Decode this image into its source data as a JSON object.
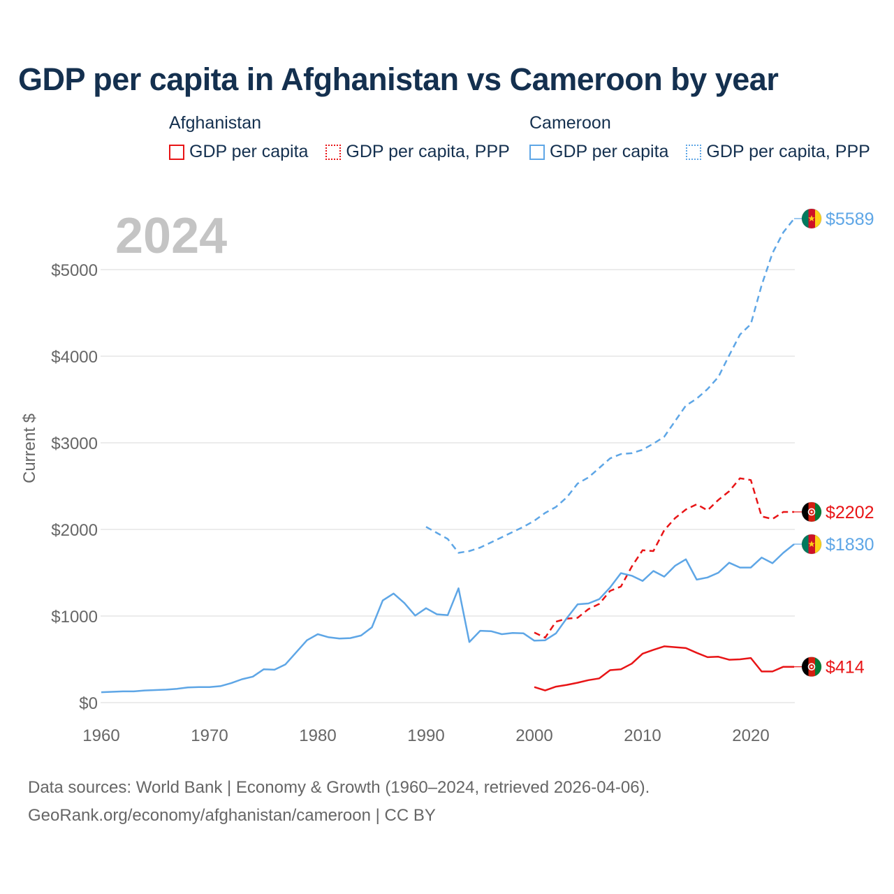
{
  "title": "GDP per capita in Afghanistan vs Cameroon by year",
  "year_watermark": "2024",
  "legend": [
    {
      "country": "Afghanistan",
      "color": "#e81416",
      "items": [
        {
          "label": "GDP per capita",
          "style": "solid"
        },
        {
          "label": "GDP per capita, PPP",
          "style": "dotted"
        }
      ]
    },
    {
      "country": "Cameroon",
      "color": "#5ea6e6",
      "items": [
        {
          "label": "GDP per capita",
          "style": "solid"
        },
        {
          "label": "GDP per capita, PPP",
          "style": "dotted"
        }
      ]
    }
  ],
  "footer": {
    "sources": "Data sources: World Bank | Economy & Growth (1960–2024, retrieved 2026-04-06).",
    "credit": "GeoRank.org/economy/afghanistan/cameroon | CC BY"
  },
  "chart_data": {
    "type": "line",
    "title": "GDP per capita in Afghanistan vs Cameroon by year",
    "xlabel": "",
    "ylabel": "Current $",
    "xlim": [
      1960,
      2024
    ],
    "ylim": [
      0,
      5600
    ],
    "x_ticks": [
      1960,
      1970,
      1980,
      1990,
      2000,
      2010,
      2020
    ],
    "y_ticks": [
      0,
      1000,
      2000,
      3000,
      4000,
      5000
    ],
    "y_tick_labels": [
      "$0",
      "$1000",
      "$2000",
      "$3000",
      "$4000",
      "$5000"
    ],
    "grid": true,
    "series": [
      {
        "name": "Afghanistan GDP per capita",
        "country": "Afghanistan",
        "color": "#e81416",
        "dash": "solid",
        "end_label": "$414",
        "flag": "afghanistan",
        "x": [
          2000,
          2001,
          2002,
          2003,
          2004,
          2005,
          2006,
          2007,
          2008,
          2009,
          2010,
          2011,
          2012,
          2013,
          2014,
          2015,
          2016,
          2017,
          2018,
          2019,
          2020,
          2021,
          2022,
          2023,
          2024
        ],
        "values": [
          180,
          140,
          185,
          205,
          230,
          260,
          280,
          375,
          385,
          450,
          565,
          610,
          650,
          640,
          630,
          575,
          525,
          530,
          495,
          500,
          515,
          360,
          360,
          414,
          414
        ]
      },
      {
        "name": "Afghanistan GDP per capita, PPP",
        "country": "Afghanistan",
        "color": "#e81416",
        "dash": "dashed",
        "end_label": "$2202",
        "flag": "afghanistan",
        "x": [
          2000,
          2001,
          2002,
          2003,
          2004,
          2005,
          2006,
          2007,
          2008,
          2009,
          2010,
          2011,
          2012,
          2013,
          2014,
          2015,
          2016,
          2017,
          2018,
          2019,
          2020,
          2021,
          2022,
          2023,
          2024
        ],
        "values": [
          810,
          750,
          935,
          970,
          980,
          1080,
          1140,
          1290,
          1340,
          1570,
          1760,
          1750,
          1990,
          2130,
          2230,
          2290,
          2220,
          2340,
          2440,
          2590,
          2570,
          2150,
          2120,
          2202,
          2202
        ]
      },
      {
        "name": "Cameroon GDP per capita",
        "country": "Cameroon",
        "color": "#5ea6e6",
        "dash": "solid",
        "end_label": "$1830",
        "flag": "cameroon",
        "x": [
          1960,
          1961,
          1962,
          1963,
          1964,
          1965,
          1966,
          1967,
          1968,
          1969,
          1970,
          1971,
          1972,
          1973,
          1974,
          1975,
          1976,
          1977,
          1978,
          1979,
          1980,
          1981,
          1982,
          1983,
          1984,
          1985,
          1986,
          1987,
          1988,
          1989,
          1990,
          1991,
          1992,
          1993,
          1994,
          1995,
          1996,
          1997,
          1998,
          1999,
          2000,
          2001,
          2002,
          2003,
          2004,
          2005,
          2006,
          2007,
          2008,
          2009,
          2010,
          2011,
          2012,
          2013,
          2014,
          2015,
          2016,
          2017,
          2018,
          2019,
          2020,
          2021,
          2022,
          2023,
          2024
        ],
        "values": [
          120,
          125,
          130,
          130,
          140,
          145,
          150,
          160,
          175,
          180,
          180,
          190,
          225,
          270,
          300,
          385,
          380,
          440,
          580,
          720,
          790,
          755,
          740,
          745,
          775,
          870,
          1180,
          1260,
          1150,
          1005,
          1090,
          1020,
          1010,
          1320,
          700,
          830,
          825,
          790,
          805,
          800,
          715,
          720,
          800,
          975,
          1135,
          1145,
          1195,
          1330,
          1495,
          1465,
          1405,
          1520,
          1455,
          1580,
          1655,
          1420,
          1445,
          1500,
          1615,
          1560,
          1560,
          1675,
          1610,
          1730,
          1830
        ]
      },
      {
        "name": "Cameroon GDP per capita, PPP",
        "country": "Cameroon",
        "color": "#5ea6e6",
        "dash": "dashed",
        "end_label": "$5589",
        "flag": "cameroon",
        "x": [
          1990,
          1991,
          1992,
          1993,
          1994,
          1995,
          1996,
          1997,
          1998,
          1999,
          2000,
          2001,
          2002,
          2003,
          2004,
          2005,
          2006,
          2007,
          2008,
          2009,
          2010,
          2011,
          2012,
          2013,
          2014,
          2015,
          2016,
          2017,
          2018,
          2019,
          2020,
          2021,
          2022,
          2023,
          2024
        ],
        "values": [
          2030,
          1960,
          1890,
          1730,
          1750,
          1790,
          1850,
          1910,
          1970,
          2030,
          2100,
          2190,
          2260,
          2370,
          2530,
          2600,
          2710,
          2820,
          2870,
          2880,
          2920,
          2990,
          3070,
          3250,
          3430,
          3510,
          3620,
          3760,
          4010,
          4250,
          4370,
          4820,
          5190,
          5430,
          5589
        ]
      }
    ]
  }
}
